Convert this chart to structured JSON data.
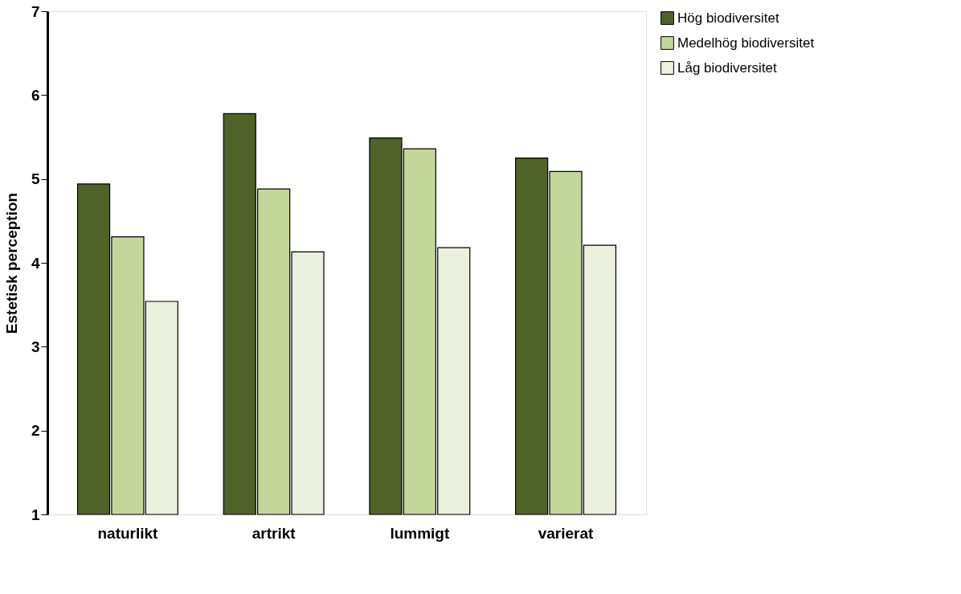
{
  "chart_data": {
    "type": "bar",
    "ylabel": "Estetisk perception",
    "categories": [
      "naturlikt",
      "artrikt",
      "lummigt",
      "varierat"
    ],
    "series": [
      {
        "name": "Hög biodiversitet",
        "color": "#4f6228",
        "values": [
          4.94,
          5.78,
          5.49,
          5.25
        ]
      },
      {
        "name": "Medelhög biodiversitet",
        "color": "#c4d79b",
        "values": [
          4.31,
          4.88,
          5.36,
          5.09
        ]
      },
      {
        "name": "Låg biodiversitet",
        "color": "#ebf1de",
        "values": [
          3.54,
          4.13,
          4.18,
          4.21
        ]
      }
    ],
    "ylim": [
      1,
      7
    ],
    "yticks": [
      1,
      2,
      3,
      4,
      5,
      6,
      7
    ],
    "grid": false,
    "legend": "right"
  }
}
